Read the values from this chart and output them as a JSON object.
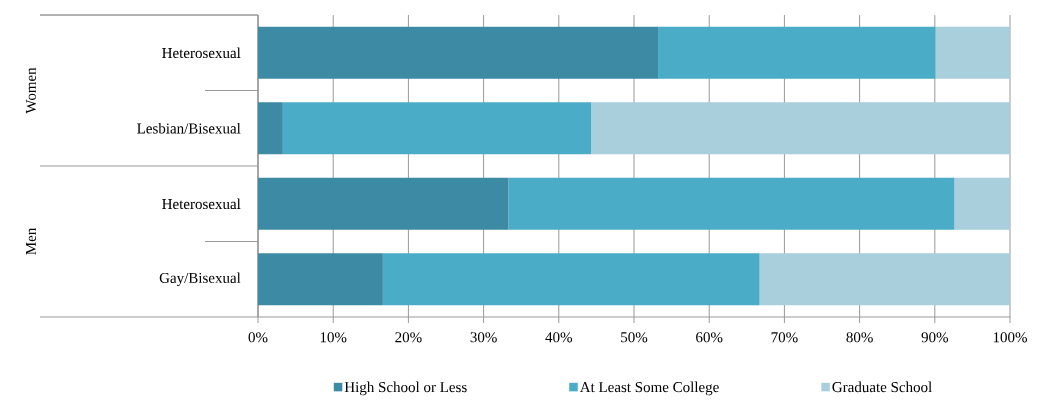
{
  "chart_data": {
    "type": "bar",
    "orientation": "horizontal",
    "stacked": true,
    "categories": [
      "Heterosexual",
      "Lesbian/Bisexual",
      "Heterosexual",
      "Gay/Bisexual"
    ],
    "annotations": [
      "Women",
      "Men"
    ],
    "series": [
      {
        "name": "High School or Less",
        "color": "#3c8aa3",
        "values": [
          53.2,
          3.3,
          33.3,
          16.6
        ]
      },
      {
        "name": "At Least Some College",
        "color": "#4aacc6",
        "values": [
          36.9,
          41.0,
          59.3,
          50.1
        ]
      },
      {
        "name": "Graduate School",
        "color": "#a9cfdd",
        "values": [
          9.9,
          55.7,
          7.4,
          33.3
        ]
      }
    ],
    "xlim": [
      0,
      100
    ],
    "xticks": [
      {
        "value": 0,
        "label": "0%"
      },
      {
        "value": 10,
        "label": "10%"
      },
      {
        "value": 20,
        "label": "20%"
      },
      {
        "value": 30,
        "label": "30%"
      },
      {
        "value": 40,
        "label": "40%"
      },
      {
        "value": 50,
        "label": "50%"
      },
      {
        "value": 60,
        "label": "60%"
      },
      {
        "value": 70,
        "label": "70%"
      },
      {
        "value": 80,
        "label": "80%"
      },
      {
        "value": 90,
        "label": "90%"
      },
      {
        "value": 100,
        "label": "100%"
      }
    ],
    "grid": "x",
    "legend": "bottom"
  }
}
